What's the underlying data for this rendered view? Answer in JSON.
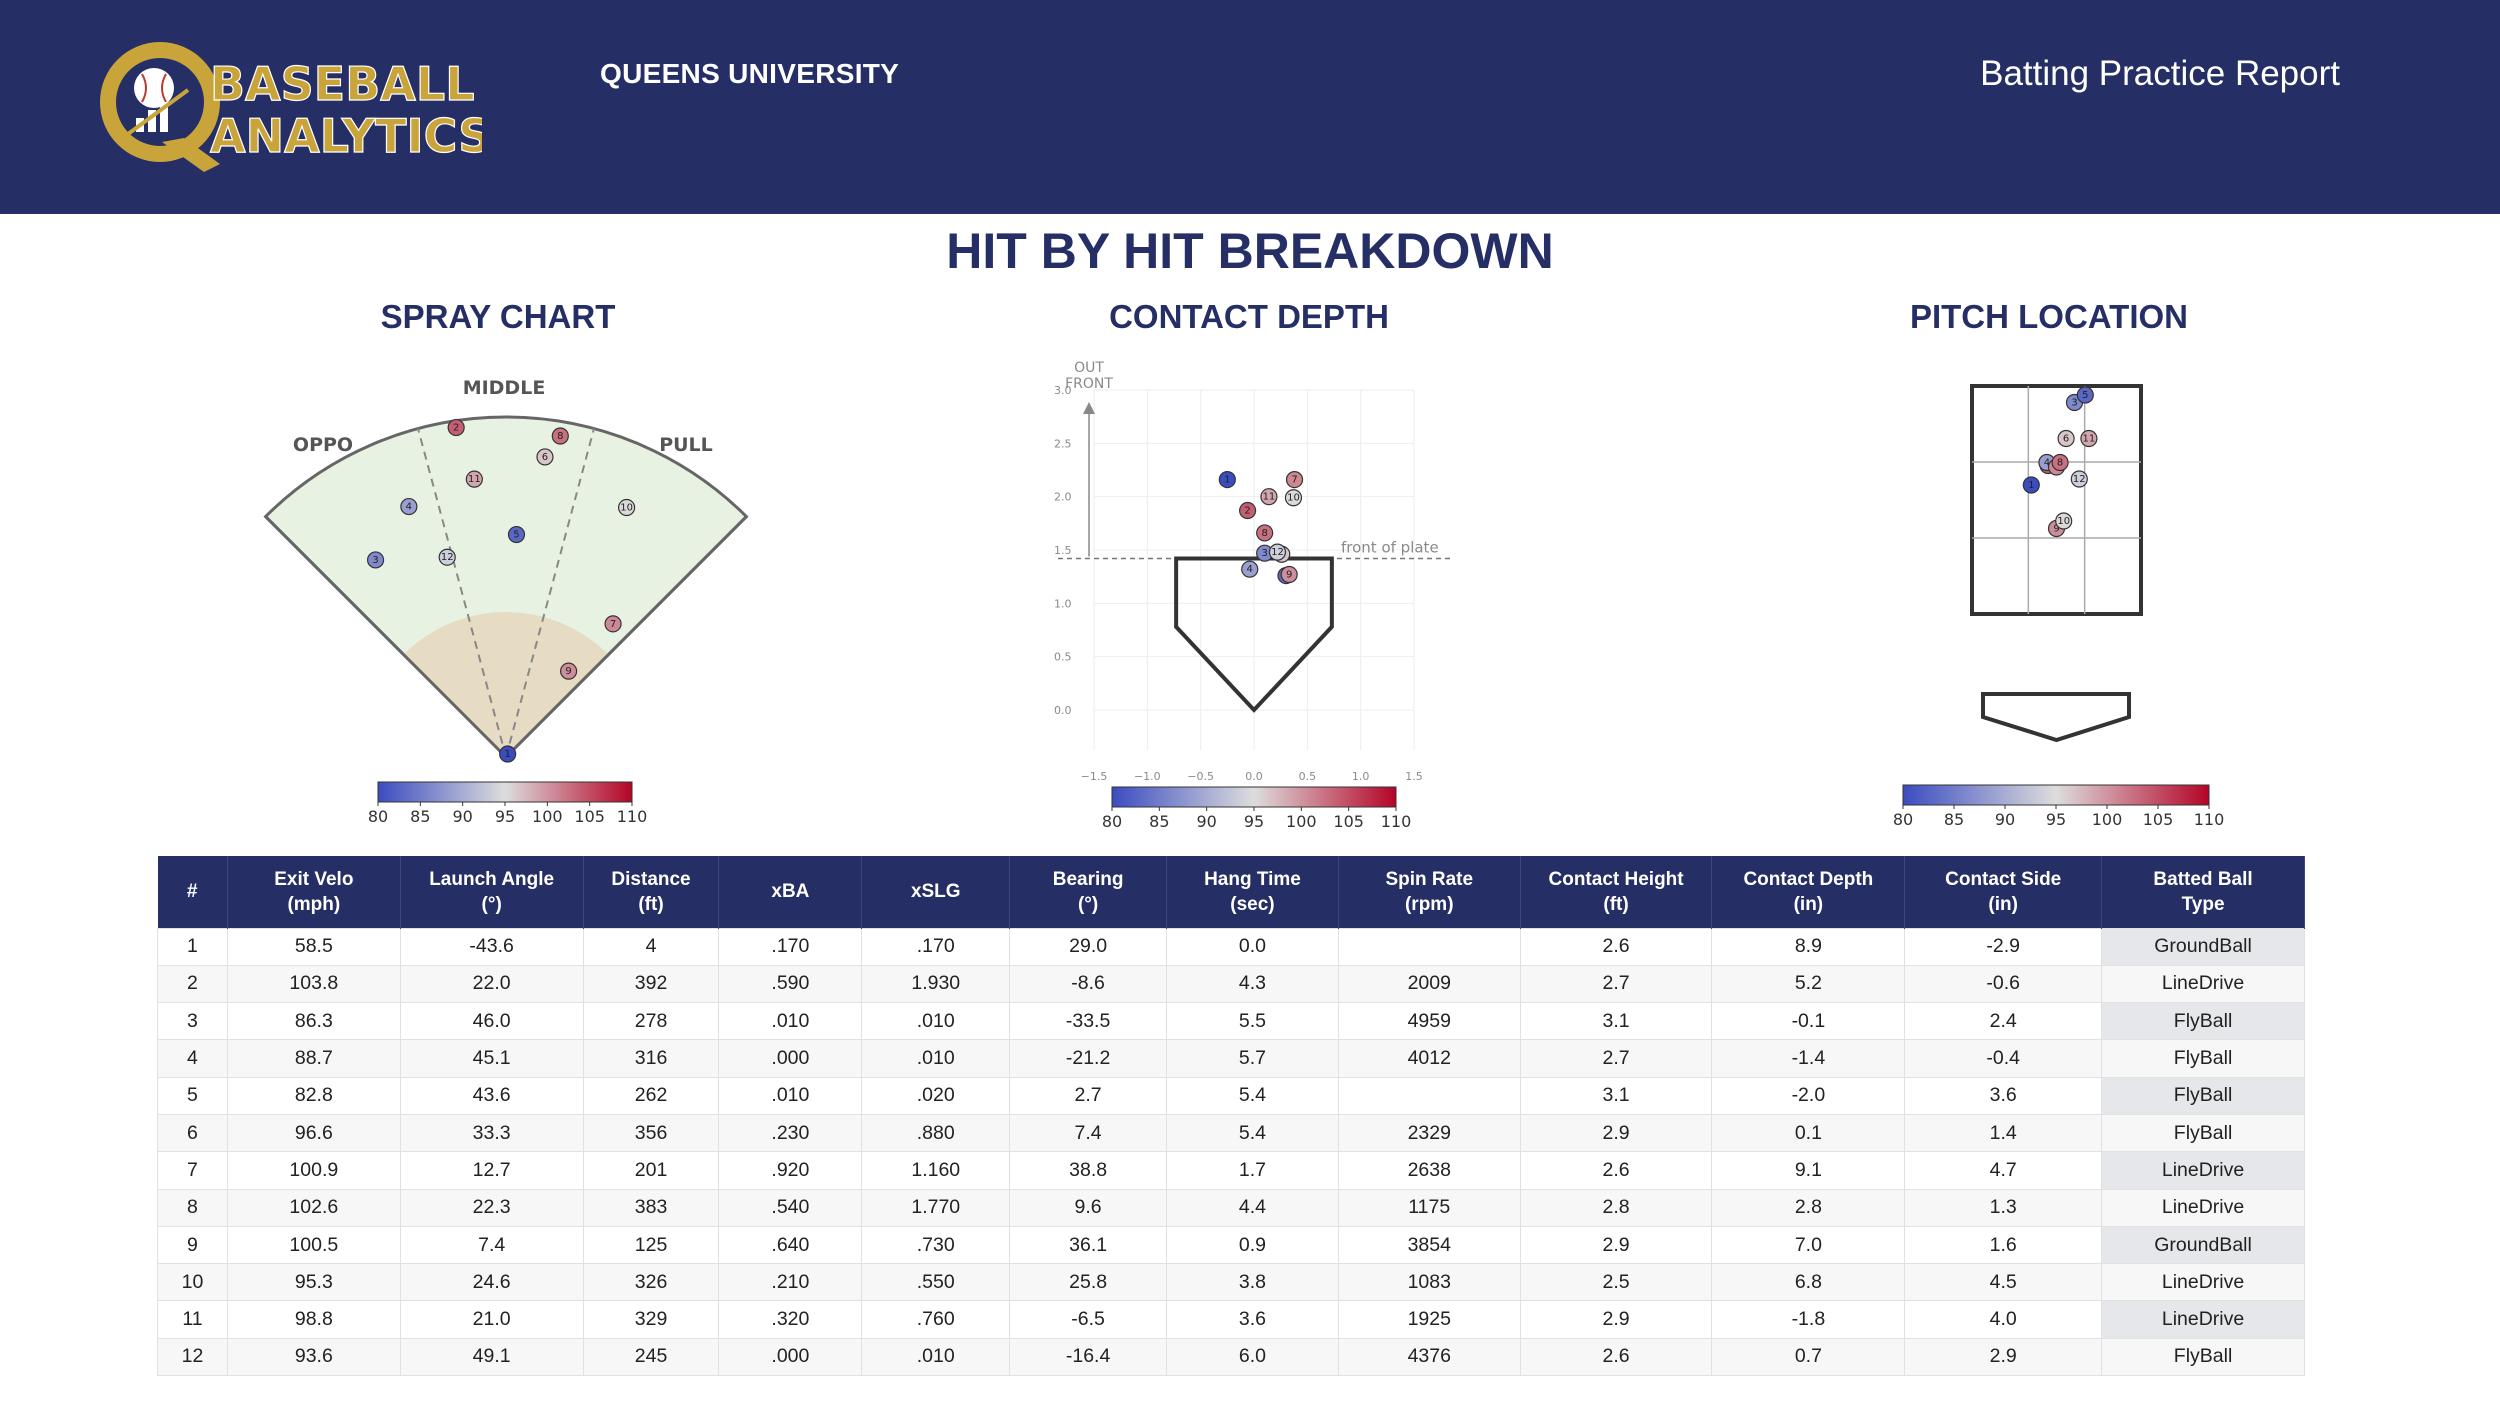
{
  "header": {
    "logo_line1": "BASEBALL",
    "logo_line2": "ANALYTICS",
    "school": "QUEENS UNIVERSITY",
    "report_title": "Batting Practice Report"
  },
  "page_title": "HIT BY HIT BREAKDOWN",
  "panels": {
    "spray_title": "SPRAY CHART",
    "depth_title": "CONTACT DEPTH",
    "location_title": "PITCH LOCATION"
  },
  "colors": {
    "navy": "#252f66",
    "gold": "#c9a43a",
    "low": "#3b4cc0",
    "mid": "#dddddd",
    "high": "#b40426"
  },
  "chart_data": [
    {
      "type": "scatter",
      "title": "SPRAY CHART",
      "field_labels": {
        "left": "OPPO",
        "center": "MIDDLE",
        "right": "PULL"
      },
      "color_scale": {
        "label_ticks": [
          "80",
          "85",
          "90",
          "95",
          "100",
          "105",
          "110"
        ],
        "min": 80,
        "max": 110
      },
      "points": [
        {
          "id": 1,
          "bearing": 29.0,
          "distance": 4,
          "exit_velo": 58.5
        },
        {
          "id": 2,
          "bearing": -8.6,
          "distance": 392,
          "exit_velo": 103.8
        },
        {
          "id": 3,
          "bearing": -33.5,
          "distance": 278,
          "exit_velo": 86.3
        },
        {
          "id": 4,
          "bearing": -21.2,
          "distance": 316,
          "exit_velo": 88.7
        },
        {
          "id": 5,
          "bearing": 2.7,
          "distance": 262,
          "exit_velo": 82.8
        },
        {
          "id": 6,
          "bearing": 7.4,
          "distance": 356,
          "exit_velo": 96.6
        },
        {
          "id": 7,
          "bearing": 38.8,
          "distance": 201,
          "exit_velo": 100.9
        },
        {
          "id": 8,
          "bearing": 9.6,
          "distance": 383,
          "exit_velo": 102.6
        },
        {
          "id": 9,
          "bearing": 36.1,
          "distance": 125,
          "exit_velo": 100.5
        },
        {
          "id": 10,
          "bearing": 25.8,
          "distance": 326,
          "exit_velo": 95.3
        },
        {
          "id": 11,
          "bearing": -6.5,
          "distance": 329,
          "exit_velo": 98.8
        },
        {
          "id": 12,
          "bearing": -16.4,
          "distance": 245,
          "exit_velo": 93.6
        }
      ]
    },
    {
      "type": "scatter",
      "title": "CONTACT DEPTH",
      "annotation_out": "OUT",
      "annotation_front": "FRONT",
      "annotation_plate": "front of plate",
      "x_ticks": [
        "−1.5",
        "−1.0",
        "−0.5",
        "0.0",
        "0.5",
        "1.0",
        "1.5"
      ],
      "y_ticks": [
        "0.0",
        "0.5",
        "1.0",
        "1.5",
        "2.0",
        "2.5",
        "3.0"
      ],
      "xlim": [
        -1.5,
        1.5
      ],
      "ylim": [
        0,
        3
      ],
      "color_scale": {
        "label_ticks": [
          "80",
          "85",
          "90",
          "95",
          "100",
          "105",
          "110"
        ],
        "min": 80,
        "max": 110
      },
      "points": [
        {
          "id": 1,
          "x": -0.25,
          "y": 2.16,
          "exit_velo": 58.5
        },
        {
          "id": 2,
          "x": -0.06,
          "y": 1.87,
          "exit_velo": 103.8
        },
        {
          "id": 3,
          "x": 0.1,
          "y": 1.47,
          "exit_velo": 86.3
        },
        {
          "id": 4,
          "x": -0.04,
          "y": 1.32,
          "exit_velo": 88.7
        },
        {
          "id": 5,
          "x": 0.3,
          "y": 1.26,
          "exit_velo": 82.8
        },
        {
          "id": 6,
          "x": 0.26,
          "y": 1.46,
          "exit_velo": 96.6
        },
        {
          "id": 7,
          "x": 0.38,
          "y": 2.16,
          "exit_velo": 100.9
        },
        {
          "id": 8,
          "x": 0.1,
          "y": 1.66,
          "exit_velo": 102.6
        },
        {
          "id": 9,
          "x": 0.33,
          "y": 1.27,
          "exit_velo": 100.5
        },
        {
          "id": 10,
          "x": 0.37,
          "y": 1.99,
          "exit_velo": 95.3
        },
        {
          "id": 11,
          "x": 0.14,
          "y": 2.0,
          "exit_velo": 98.8
        },
        {
          "id": 12,
          "x": 0.22,
          "y": 1.48,
          "exit_velo": 93.6
        }
      ]
    },
    {
      "type": "scatter",
      "title": "PITCH LOCATION",
      "color_scale": {
        "label_ticks": [
          "80",
          "85",
          "90",
          "95",
          "100",
          "105",
          "110"
        ],
        "min": 80,
        "max": 110
      },
      "points": [
        {
          "id": 1,
          "x": -0.21,
          "y": 3.29,
          "exit_velo": 58.5
        },
        {
          "id": 2,
          "x": -0.07,
          "y": 3.42,
          "exit_velo": 103.8
        },
        {
          "id": 3,
          "x": 0.15,
          "y": 3.84,
          "exit_velo": 86.3
        },
        {
          "id": 4,
          "x": -0.08,
          "y": 3.44,
          "exit_velo": 88.7
        },
        {
          "id": 5,
          "x": 0.24,
          "y": 3.89,
          "exit_velo": 82.8
        },
        {
          "id": 6,
          "x": 0.08,
          "y": 3.6,
          "exit_velo": 96.6
        },
        {
          "id": 7,
          "x": 0.0,
          "y": 3.41,
          "exit_velo": 100.9
        },
        {
          "id": 8,
          "x": 0.03,
          "y": 3.44,
          "exit_velo": 102.6
        },
        {
          "id": 9,
          "x": 0.0,
          "y": 3.0,
          "exit_velo": 100.5
        },
        {
          "id": 10,
          "x": 0.06,
          "y": 3.05,
          "exit_velo": 95.3
        },
        {
          "id": 11,
          "x": 0.27,
          "y": 3.6,
          "exit_velo": 98.8
        },
        {
          "id": 12,
          "x": 0.19,
          "y": 3.33,
          "exit_velo": 93.6
        }
      ]
    },
    {
      "type": "table",
      "columns": [
        "#",
        "Exit Velo\n(mph)",
        "Launch Angle\n(°)",
        "Distance\n(ft)",
        "xBA",
        "xSLG",
        "Bearing\n(°)",
        "Hang Time\n(sec)",
        "Spin Rate\n(rpm)",
        "Contact Height\n(ft)",
        "Contact Depth\n(in)",
        "Contact Side\n(in)",
        "Batted Ball\nType"
      ],
      "rows": [
        [
          "1",
          "58.5",
          "-43.6",
          "4",
          ".170",
          ".170",
          "29.0",
          "0.0",
          "",
          "2.6",
          "8.9",
          "-2.9",
          "GroundBall"
        ],
        [
          "2",
          "103.8",
          "22.0",
          "392",
          ".590",
          "1.930",
          "-8.6",
          "4.3",
          "2009",
          "2.7",
          "5.2",
          "-0.6",
          "LineDrive"
        ],
        [
          "3",
          "86.3",
          "46.0",
          "278",
          ".010",
          ".010",
          "-33.5",
          "5.5",
          "4959",
          "3.1",
          "-0.1",
          "2.4",
          "FlyBall"
        ],
        [
          "4",
          "88.7",
          "45.1",
          "316",
          ".000",
          ".010",
          "-21.2",
          "5.7",
          "4012",
          "2.7",
          "-1.4",
          "-0.4",
          "FlyBall"
        ],
        [
          "5",
          "82.8",
          "43.6",
          "262",
          ".010",
          ".020",
          "2.7",
          "5.4",
          "",
          "3.1",
          "-2.0",
          "3.6",
          "FlyBall"
        ],
        [
          "6",
          "96.6",
          "33.3",
          "356",
          ".230",
          ".880",
          "7.4",
          "5.4",
          "2329",
          "2.9",
          "0.1",
          "1.4",
          "FlyBall"
        ],
        [
          "7",
          "100.9",
          "12.7",
          "201",
          ".920",
          "1.160",
          "38.8",
          "1.7",
          "2638",
          "2.6",
          "9.1",
          "4.7",
          "LineDrive"
        ],
        [
          "8",
          "102.6",
          "22.3",
          "383",
          ".540",
          "1.770",
          "9.6",
          "4.4",
          "1175",
          "2.8",
          "2.8",
          "1.3",
          "LineDrive"
        ],
        [
          "9",
          "100.5",
          "7.4",
          "125",
          ".640",
          ".730",
          "36.1",
          "0.9",
          "3854",
          "2.9",
          "7.0",
          "1.6",
          "GroundBall"
        ],
        [
          "10",
          "95.3",
          "24.6",
          "326",
          ".210",
          ".550",
          "25.8",
          "3.8",
          "1083",
          "2.5",
          "6.8",
          "4.5",
          "LineDrive"
        ],
        [
          "11",
          "98.8",
          "21.0",
          "329",
          ".320",
          ".760",
          "-6.5",
          "3.6",
          "1925",
          "2.9",
          "-1.8",
          "4.0",
          "LineDrive"
        ],
        [
          "12",
          "93.6",
          "49.1",
          "245",
          ".000",
          ".010",
          "-16.4",
          "6.0",
          "4376",
          "2.6",
          "0.7",
          "2.9",
          "FlyBall"
        ]
      ]
    }
  ]
}
